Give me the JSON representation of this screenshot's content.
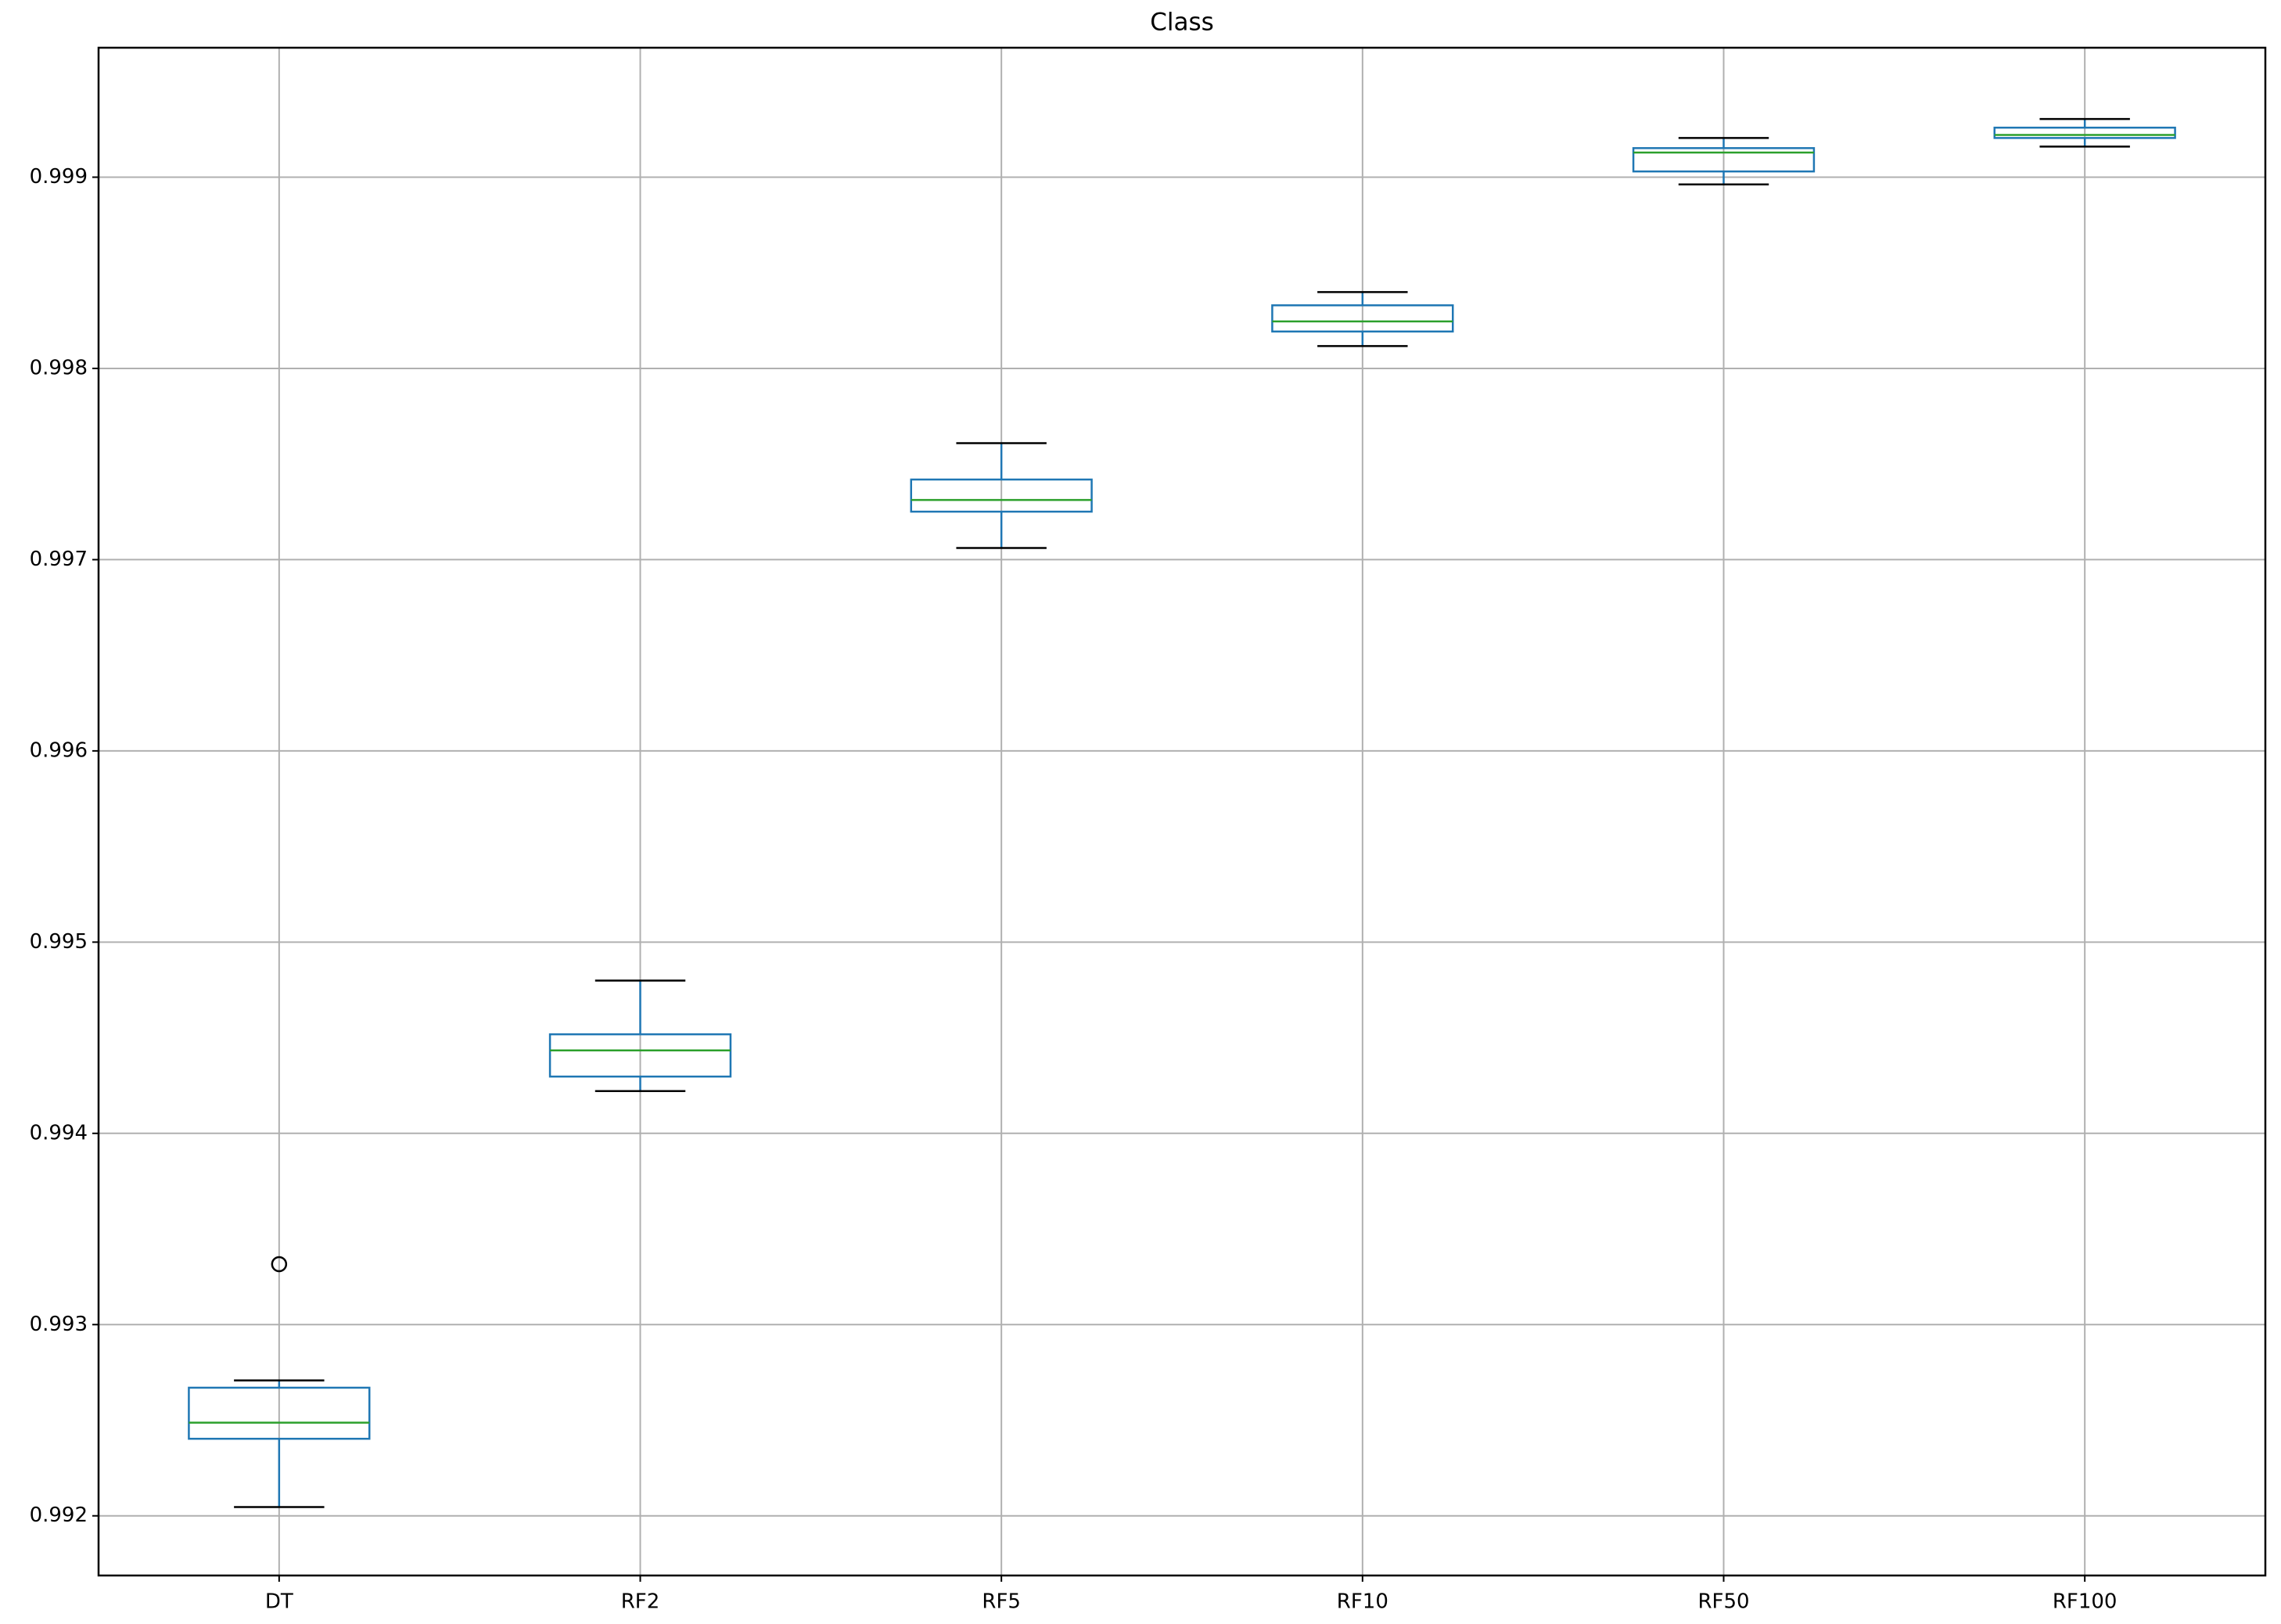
{
  "chart_data": {
    "type": "box",
    "title": "Class",
    "categories": [
      "DT",
      "RF2",
      "RF5",
      "RF10",
      "RF50",
      "RF100"
    ],
    "boxes": [
      {
        "whislo": 0.992046,
        "q1": 0.992403,
        "med": 0.992487,
        "q3": 0.99267,
        "whishi": 0.992708,
        "fliers": [
          0.993316
        ]
      },
      {
        "whislo": 0.994221,
        "q1": 0.994297,
        "med": 0.994434,
        "q3": 0.994518,
        "whishi": 0.994799,
        "fliers": []
      },
      {
        "whislo": 0.997061,
        "q1": 0.997251,
        "med": 0.997312,
        "q3": 0.997419,
        "whishi": 0.997609,
        "fliers": []
      },
      {
        "whislo": 0.998117,
        "q1": 0.998193,
        "med": 0.998246,
        "q3": 0.99833,
        "whishi": 0.998399,
        "fliers": []
      },
      {
        "whislo": 0.998962,
        "q1": 0.99903,
        "med": 0.999129,
        "q3": 0.999152,
        "whishi": 0.999205,
        "fliers": []
      },
      {
        "whislo": 0.99916,
        "q1": 0.999205,
        "med": 0.999221,
        "q3": 0.999259,
        "whishi": 0.999304,
        "fliers": []
      }
    ],
    "box_color": "#1f77b4",
    "median_color": "#2ca02c",
    "whisker_color": "#1f77b4",
    "cap_color": "#000000",
    "ylim": [
      0.991688,
      0.999677
    ],
    "yticks": [
      0.992,
      0.993,
      0.994,
      0.995,
      0.996,
      0.997,
      0.998,
      0.999
    ],
    "grid": true
  }
}
